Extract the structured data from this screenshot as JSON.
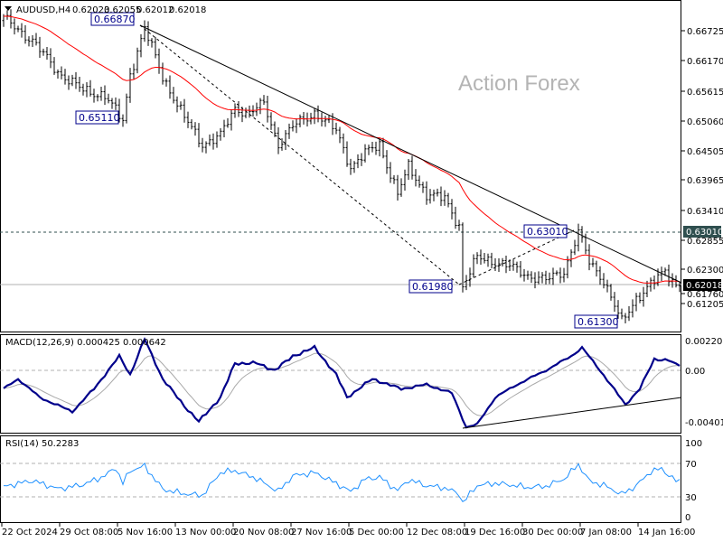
{
  "header": {
    "symbol": "AUDUSD,H4",
    "open": "0.62023",
    "high": "0.62055",
    "low": "0.62012",
    "close": "0.62018"
  },
  "watermark": "Action Forex",
  "colors": {
    "bars": "#000000",
    "ma": "#ff0000",
    "macd": "#00008b",
    "signal": "#a9a9a9",
    "rsi": "#1e90ff",
    "label_border": "#00008b",
    "current_price_bg": "#000000",
    "level_bg": "#2f4f4f"
  },
  "chart_data": [
    {
      "type": "line",
      "title": "AUDUSD,H4",
      "ylim": [
        0.6105,
        0.672
      ],
      "yticks": [
        "0.66725",
        "0.66170",
        "0.65615",
        "0.65060",
        "0.64505",
        "0.63965",
        "0.63410",
        "0.62855",
        "0.62300",
        "0.61760",
        "0.61205"
      ],
      "xticks": [
        "22 Oct 2024",
        "29 Oct 08:00",
        "5 Nov 16:00",
        "13 Nov 00:00",
        "20 Nov 08:00",
        "27 Nov 16:00",
        "5 Dec 00:00",
        "12 Dec 08:00",
        "19 Dec 16:00",
        "30 Dec 00:00",
        "7 Jan 08:00",
        "14 Jan 16:00"
      ],
      "price_path": [
        [
          0,
          0.6706
        ],
        [
          8,
          0.6663
        ],
        [
          15,
          0.6604
        ],
        [
          22,
          0.6569
        ],
        [
          28,
          0.656
        ],
        [
          33,
          0.6511
        ],
        [
          35,
          0.66
        ],
        [
          39,
          0.6687
        ],
        [
          44,
          0.6595
        ],
        [
          50,
          0.6518
        ],
        [
          55,
          0.6467
        ],
        [
          60,
          0.6484
        ],
        [
          64,
          0.6535
        ],
        [
          68,
          0.6527
        ],
        [
          72,
          0.6544
        ],
        [
          76,
          0.6467
        ],
        [
          80,
          0.6501
        ],
        [
          86,
          0.6527
        ],
        [
          92,
          0.6493
        ],
        [
          96,
          0.6424
        ],
        [
          100,
          0.645
        ],
        [
          104,
          0.6467
        ],
        [
          109,
          0.6373
        ],
        [
          112,
          0.6424
        ],
        [
          117,
          0.6373
        ],
        [
          122,
          0.6364
        ],
        [
          126,
          0.6313
        ],
        [
          127,
          0.6198
        ],
        [
          131,
          0.6253
        ],
        [
          136,
          0.6245
        ],
        [
          140,
          0.6236
        ],
        [
          145,
          0.6219
        ],
        [
          150,
          0.621
        ],
        [
          155,
          0.6227
        ],
        [
          159,
          0.6301
        ],
        [
          162,
          0.6245
        ],
        [
          166,
          0.621
        ],
        [
          171,
          0.613
        ],
        [
          175,
          0.6176
        ],
        [
          179,
          0.6202
        ],
        [
          183,
          0.6227
        ],
        [
          186,
          0.6202
        ]
      ],
      "annotations": [
        "0.66870",
        "0.65110",
        "0.61980",
        "0.63010",
        "0.61300"
      ],
      "levels": {
        "resistance": "0.63010",
        "current": "0.62018"
      }
    },
    {
      "type": "line",
      "title": "MACD(12,26,9) 0.000425 0.000642",
      "ylim": [
        -0.004012,
        0.002208
      ],
      "yticks": [
        "0.002208",
        "0.00",
        "-0.004012"
      ],
      "macd_path": [
        [
          0,
          -0.0013
        ],
        [
          4,
          -0.0006
        ],
        [
          10,
          -0.0019
        ],
        [
          19,
          -0.0029
        ],
        [
          25,
          -0.0013
        ],
        [
          32,
          0.001
        ],
        [
          35,
          -0.0003
        ],
        [
          39,
          0.0022
        ],
        [
          44,
          -0.0006
        ],
        [
          50,
          -0.0025
        ],
        [
          54,
          -0.0036
        ],
        [
          60,
          -0.0019
        ],
        [
          64,
          0.0005
        ],
        [
          70,
          0.0005
        ],
        [
          75,
          0.0
        ],
        [
          80,
          0.001
        ],
        [
          86,
          0.0016
        ],
        [
          92,
          -0.0003
        ],
        [
          95,
          -0.0019
        ],
        [
          102,
          -0.0006
        ],
        [
          110,
          -0.0013
        ],
        [
          117,
          -0.001
        ],
        [
          124,
          -0.0016
        ],
        [
          128,
          -0.004
        ],
        [
          131,
          -0.0038
        ],
        [
          136,
          -0.0019
        ],
        [
          142,
          -0.001
        ],
        [
          150,
          0.0
        ],
        [
          157,
          0.001
        ],
        [
          160,
          0.0016
        ],
        [
          165,
          0.0
        ],
        [
          172,
          -0.0024
        ],
        [
          176,
          -0.0013
        ],
        [
          180,
          0.0008
        ],
        [
          184,
          0.0007
        ],
        [
          186,
          0.0004
        ]
      ]
    },
    {
      "type": "line",
      "title": "RSI(14) 50.2283",
      "ylim": [
        0,
        100
      ],
      "yticks": [
        "100",
        "70",
        "30",
        "0"
      ],
      "rsi_path": [
        [
          0,
          42
        ],
        [
          8,
          48
        ],
        [
          15,
          40
        ],
        [
          22,
          46
        ],
        [
          28,
          55
        ],
        [
          31,
          64
        ],
        [
          33,
          45
        ],
        [
          35,
          60
        ],
        [
          39,
          66
        ],
        [
          44,
          40
        ],
        [
          50,
          35
        ],
        [
          55,
          32
        ],
        [
          60,
          58
        ],
        [
          64,
          60
        ],
        [
          70,
          52
        ],
        [
          76,
          38
        ],
        [
          80,
          56
        ],
        [
          86,
          58
        ],
        [
          92,
          45
        ],
        [
          96,
          36
        ],
        [
          100,
          52
        ],
        [
          104,
          55
        ],
        [
          109,
          38
        ],
        [
          112,
          50
        ],
        [
          117,
          42
        ],
        [
          122,
          40
        ],
        [
          126,
          34
        ],
        [
          127,
          24
        ],
        [
          131,
          45
        ],
        [
          136,
          47
        ],
        [
          140,
          44
        ],
        [
          145,
          40
        ],
        [
          150,
          42
        ],
        [
          155,
          52
        ],
        [
          159,
          70
        ],
        [
          162,
          50
        ],
        [
          166,
          44
        ],
        [
          171,
          32
        ],
        [
          175,
          42
        ],
        [
          179,
          60
        ],
        [
          182,
          64
        ],
        [
          186,
          50
        ]
      ]
    }
  ]
}
